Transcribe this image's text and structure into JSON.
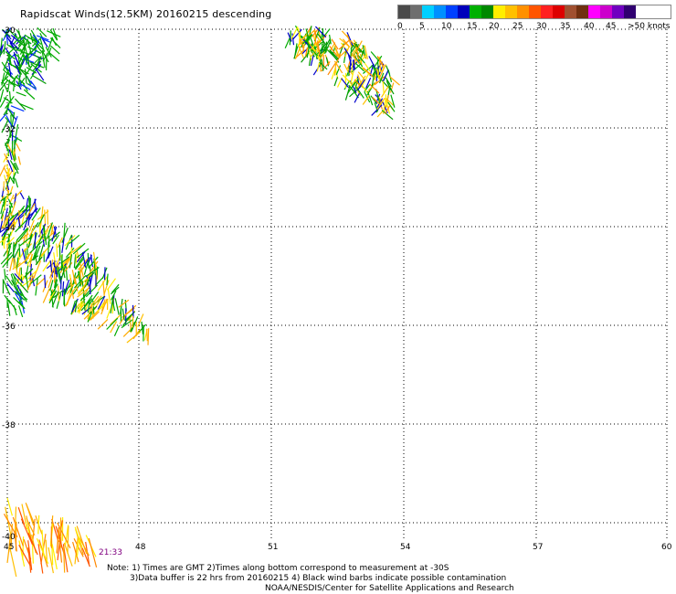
{
  "title": "Rapidscat Winds(12.5KM) 20160215 descending",
  "legend": {
    "colors": [
      "#555555",
      "#777777",
      "#00ccff",
      "#0088ff",
      "#0033cc",
      "#00aa00",
      "#009900",
      "#ffee00",
      "#ffbb00",
      "#ff8800",
      "#ff4400",
      "#ff2200",
      "#aa5533",
      "#884422",
      "#ff00ff",
      "#cc00cc",
      "#8800cc",
      "#440088",
      "#220044"
    ],
    "labels": [
      "0",
      "5",
      "10",
      "15",
      "20",
      "25",
      "30",
      "35",
      "40",
      "45",
      ">50 knots"
    ]
  },
  "axes": {
    "lat_labels": [
      "-30",
      "-32",
      "-34",
      "-36",
      "-38",
      "-40"
    ],
    "lon_labels": [
      "45",
      "48",
      "51",
      "54",
      "57",
      "60"
    ]
  },
  "time_label": "21:33",
  "notes": {
    "line1": "Note: 1) Times are GMT 2)Times along bottom correspond to measurement at -30S",
    "line2": "3)Data buffer is 22 hrs from 20160215 4) Black wind barbs indicate possible contamination",
    "line3": "NOAA/NESDIS/Center for Satellite Applications and Research"
  }
}
